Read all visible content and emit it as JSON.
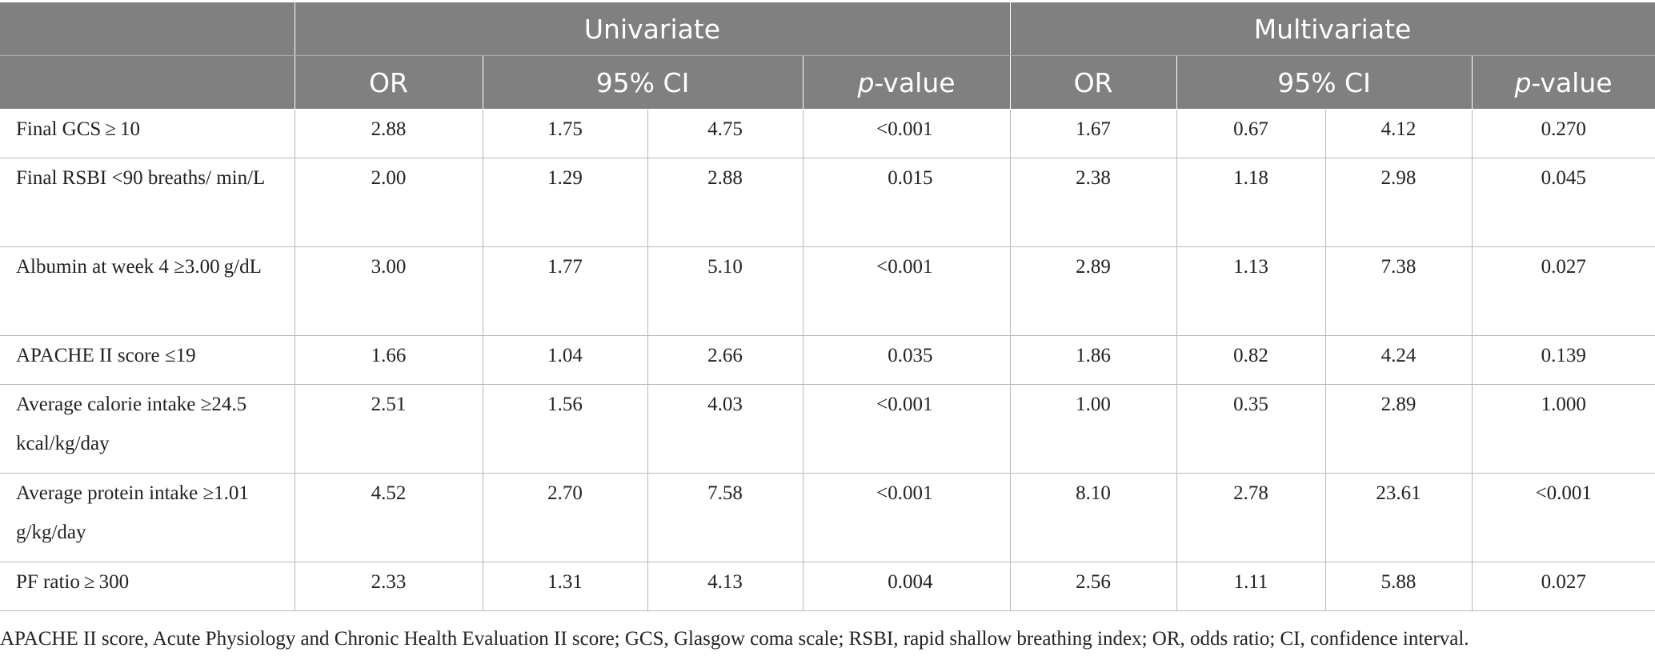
{
  "header": {
    "group_univariate": "Univariate",
    "group_multivariate": "Multivariate",
    "or_label": "OR",
    "ci_label": "95% CI",
    "p_prefix": "p",
    "p_suffix": "-value"
  },
  "rows": [
    {
      "label": "Final GCS ≥ 10",
      "u_or": "2.88",
      "u_ci_low": "1.75",
      "u_ci_high": "4.75",
      "u_p": "<0.001",
      "m_or": "1.67",
      "m_ci_low": "0.67",
      "m_ci_high": "4.12",
      "m_p": "0.270"
    },
    {
      "label": "Final RSBI <90 breaths/ min/L",
      "u_or": "2.00",
      "u_ci_low": "1.29",
      "u_ci_high": "2.88",
      "u_p": "0.015",
      "m_or": "2.38",
      "m_ci_low": "1.18",
      "m_ci_high": "2.98",
      "m_p": "0.045"
    },
    {
      "label": "Albumin at week 4 ≥3.00 g/dL",
      "u_or": "3.00",
      "u_ci_low": "1.77",
      "u_ci_high": "5.10",
      "u_p": "<0.001",
      "m_or": "2.89",
      "m_ci_low": "1.13",
      "m_ci_high": "7.38",
      "m_p": "0.027"
    },
    {
      "label": "APACHE II score ≤19",
      "u_or": "1.66",
      "u_ci_low": "1.04",
      "u_ci_high": "2.66",
      "u_p": "0.035",
      "m_or": "1.86",
      "m_ci_low": "0.82",
      "m_ci_high": "4.24",
      "m_p": "0.139"
    },
    {
      "label": "Average calorie intake ≥24.5 kcal/kg/day",
      "u_or": "2.51",
      "u_ci_low": "1.56",
      "u_ci_high": "4.03",
      "u_p": "<0.001",
      "m_or": "1.00",
      "m_ci_low": "0.35",
      "m_ci_high": "2.89",
      "m_p": "1.000"
    },
    {
      "label": "Average protein intake ≥1.01 g/kg/day",
      "u_or": "4.52",
      "u_ci_low": "2.70",
      "u_ci_high": "7.58",
      "u_p": "<0.001",
      "m_or": "8.10",
      "m_ci_low": "2.78",
      "m_ci_high": "23.61",
      "m_p": "<0.001"
    },
    {
      "label": "PF ratio ≥ 300",
      "u_or": "2.33",
      "u_ci_low": "1.31",
      "u_ci_high": "4.13",
      "u_p": "0.004",
      "m_or": "2.56",
      "m_ci_low": "1.11",
      "m_ci_high": "5.88",
      "m_p": "0.027"
    }
  ],
  "footnote": "APACHE II score, Acute Physiology and Chronic Health Evaluation II score; GCS, Glasgow coma scale; RSBI, rapid shallow breathing index; OR, odds ratio; CI, confidence interval."
}
